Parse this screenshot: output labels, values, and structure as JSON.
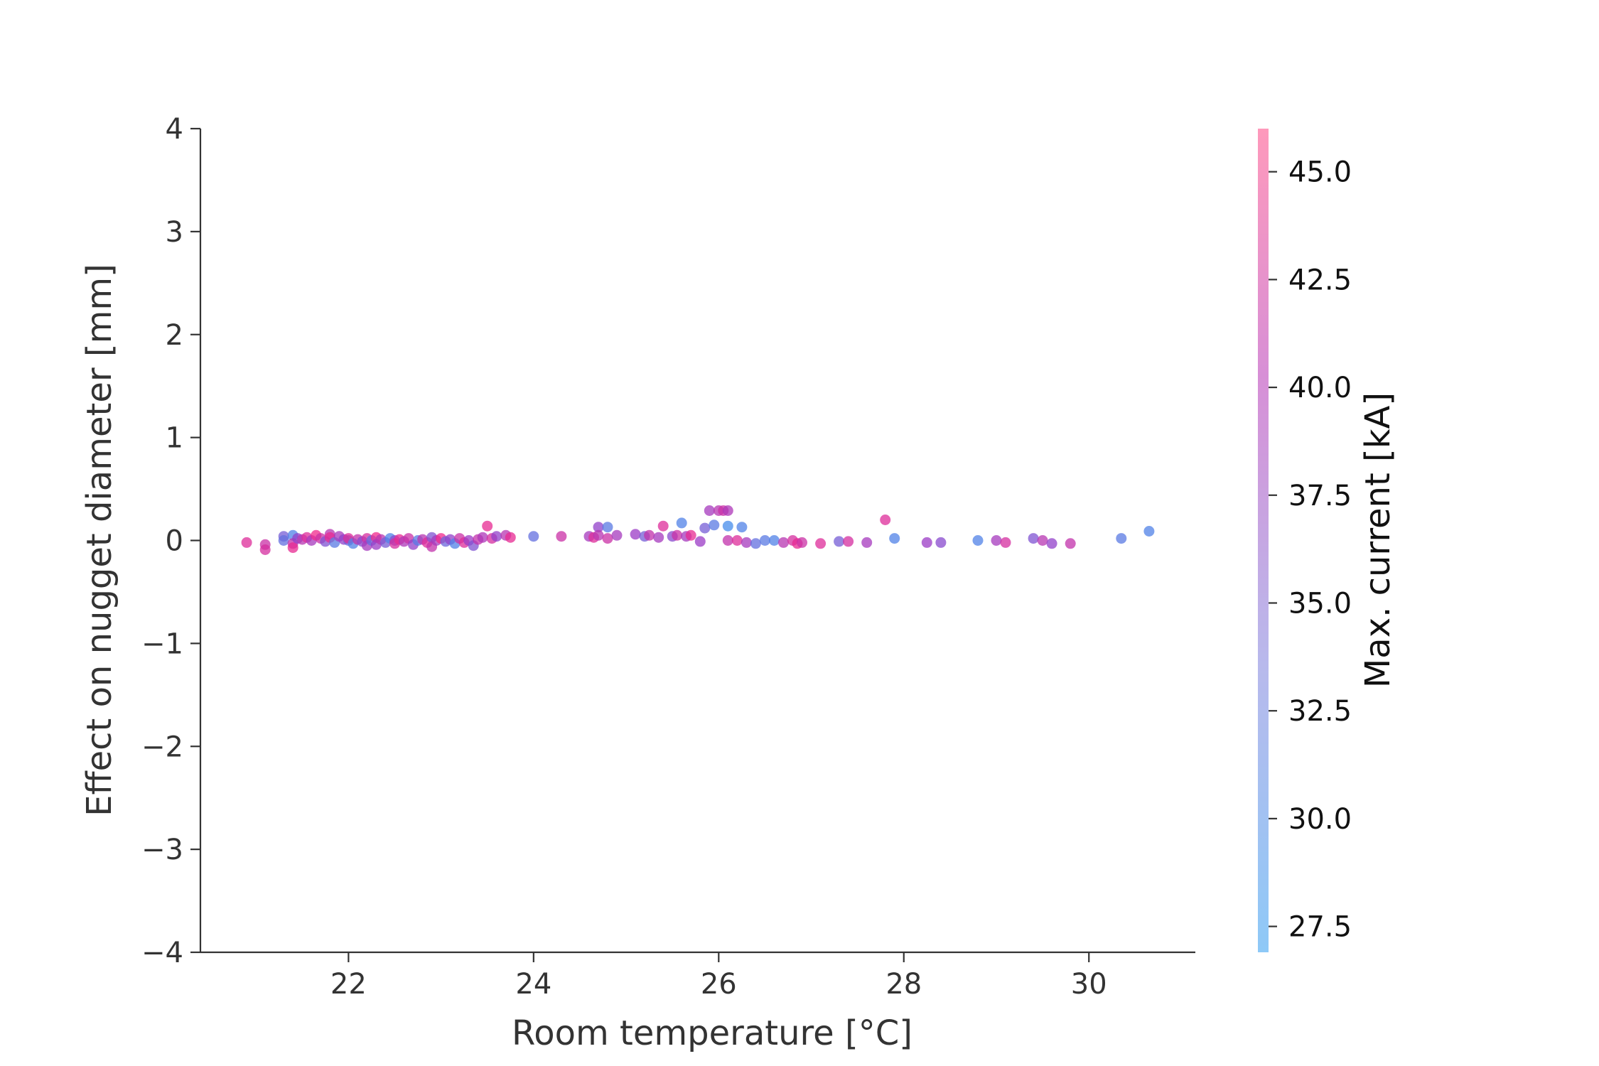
{
  "chart_data": {
    "type": "scatter",
    "xlabel": "Room temperature [°C]",
    "ylabel": "Effect on nugget diameter [mm]",
    "xlim": [
      20.4,
      31.15
    ],
    "ylim": [
      -4,
      4
    ],
    "xticks": [
      22,
      24,
      26,
      28,
      30
    ],
    "xtick_labels": [
      "22",
      "24",
      "26",
      "28",
      "30"
    ],
    "yticks": [
      -4,
      -3,
      -2,
      -1,
      0,
      1,
      2,
      3,
      4
    ],
    "ytick_labels": [
      "−4",
      "−3",
      "−2",
      "−1",
      "0",
      "1",
      "2",
      "3",
      "4"
    ],
    "grid": false,
    "colorbar": {
      "label": "Max. current [kA]",
      "range": [
        26.9,
        46.0
      ],
      "ticks": [
        27.5,
        30.0,
        32.5,
        35.0,
        37.5,
        40.0,
        42.5,
        45.0
      ],
      "tick_labels": [
        "27.5",
        "30.0",
        "32.5",
        "35.0",
        "37.5",
        "40.0",
        "42.5",
        "45.0"
      ],
      "colormap": [
        "#8ec9f7",
        "#b8b9ec",
        "#d78fd6",
        "#fe99bb"
      ]
    },
    "marker_opacity": 0.75,
    "points": [
      [
        20.9,
        -0.02,
        44
      ],
      [
        21.1,
        -0.04,
        42
      ],
      [
        21.1,
        -0.09,
        43
      ],
      [
        21.3,
        0.04,
        33
      ],
      [
        21.3,
        0.0,
        31
      ],
      [
        21.4,
        0.05,
        29
      ],
      [
        21.4,
        -0.03,
        41
      ],
      [
        21.4,
        -0.07,
        45
      ],
      [
        21.45,
        0.02,
        36
      ],
      [
        21.5,
        0.01,
        40
      ],
      [
        21.55,
        0.03,
        44
      ],
      [
        21.6,
        0.0,
        38
      ],
      [
        21.65,
        0.05,
        46
      ],
      [
        21.7,
        0.02,
        42
      ],
      [
        21.75,
        -0.01,
        34
      ],
      [
        21.8,
        0.06,
        40
      ],
      [
        21.8,
        0.03,
        45
      ],
      [
        21.85,
        -0.02,
        30
      ],
      [
        21.9,
        0.04,
        38
      ],
      [
        21.95,
        0.01,
        36
      ],
      [
        22.0,
        0.0,
        32
      ],
      [
        22.0,
        0.02,
        44
      ],
      [
        22.05,
        -0.03,
        29
      ],
      [
        22.1,
        0.01,
        41
      ],
      [
        22.15,
        -0.01,
        35
      ],
      [
        22.2,
        0.02,
        43
      ],
      [
        22.2,
        -0.05,
        38
      ],
      [
        22.25,
        0.0,
        31
      ],
      [
        22.3,
        0.03,
        46
      ],
      [
        22.3,
        -0.04,
        37
      ],
      [
        22.35,
        0.01,
        40
      ],
      [
        22.4,
        -0.02,
        33
      ],
      [
        22.45,
        0.02,
        29
      ],
      [
        22.5,
        0.0,
        35
      ],
      [
        22.5,
        -0.03,
        43
      ],
      [
        22.55,
        0.01,
        45
      ],
      [
        22.6,
        -0.01,
        39
      ],
      [
        22.65,
        0.02,
        42
      ],
      [
        22.7,
        -0.04,
        36
      ],
      [
        22.75,
        0.0,
        30
      ],
      [
        22.8,
        0.01,
        40
      ],
      [
        22.85,
        -0.02,
        44
      ],
      [
        22.9,
        0.03,
        34
      ],
      [
        22.9,
        -0.06,
        41
      ],
      [
        22.95,
        0.0,
        38
      ],
      [
        23.0,
        0.02,
        46
      ],
      [
        23.05,
        -0.01,
        32
      ],
      [
        23.1,
        0.01,
        36
      ],
      [
        23.15,
        -0.03,
        29
      ],
      [
        23.2,
        0.02,
        42
      ],
      [
        23.25,
        -0.02,
        44
      ],
      [
        23.3,
        0.0,
        37
      ],
      [
        23.35,
        -0.05,
        34
      ],
      [
        23.4,
        0.01,
        41
      ],
      [
        23.45,
        0.03,
        39
      ],
      [
        23.5,
        0.14,
        45
      ],
      [
        23.55,
        0.02,
        43
      ],
      [
        23.6,
        0.04,
        36
      ],
      [
        23.7,
        0.05,
        40
      ],
      [
        23.75,
        0.03,
        45
      ],
      [
        24.0,
        0.04,
        31
      ],
      [
        24.3,
        0.04,
        42
      ],
      [
        24.6,
        0.04,
        38
      ],
      [
        24.65,
        0.03,
        44
      ],
      [
        24.7,
        0.13,
        36
      ],
      [
        24.7,
        0.05,
        40
      ],
      [
        24.8,
        0.13,
        30
      ],
      [
        24.8,
        0.02,
        42
      ],
      [
        24.9,
        0.05,
        38
      ],
      [
        25.1,
        0.06,
        37
      ],
      [
        25.2,
        0.04,
        33
      ],
      [
        25.25,
        0.05,
        41
      ],
      [
        25.35,
        0.03,
        38
      ],
      [
        25.4,
        0.14,
        44
      ],
      [
        25.5,
        0.04,
        35
      ],
      [
        25.55,
        0.05,
        42
      ],
      [
        25.6,
        0.17,
        29
      ],
      [
        25.65,
        0.04,
        38
      ],
      [
        25.7,
        0.05,
        45
      ],
      [
        25.8,
        -0.01,
        37
      ],
      [
        25.85,
        0.12,
        33
      ],
      [
        25.9,
        0.29,
        38
      ],
      [
        25.95,
        0.15,
        30
      ],
      [
        26.0,
        0.29,
        40
      ],
      [
        26.05,
        0.29,
        42
      ],
      [
        26.1,
        0.14,
        28
      ],
      [
        26.1,
        0.29,
        39
      ],
      [
        26.1,
        0.0,
        41
      ],
      [
        26.2,
        0.0,
        44
      ],
      [
        26.25,
        0.13,
        29
      ],
      [
        26.3,
        -0.02,
        38
      ],
      [
        26.4,
        -0.03,
        31
      ],
      [
        26.5,
        0.0,
        30
      ],
      [
        26.6,
        0.0,
        29
      ],
      [
        26.7,
        -0.02,
        40
      ],
      [
        26.8,
        0.0,
        43
      ],
      [
        26.85,
        -0.03,
        45
      ],
      [
        26.9,
        -0.02,
        42
      ],
      [
        27.1,
        -0.03,
        44
      ],
      [
        27.3,
        -0.01,
        33
      ],
      [
        27.4,
        -0.01,
        43
      ],
      [
        27.6,
        -0.02,
        38
      ],
      [
        27.8,
        0.2,
        44
      ],
      [
        27.9,
        0.02,
        29
      ],
      [
        28.25,
        -0.02,
        37
      ],
      [
        28.4,
        -0.02,
        35
      ],
      [
        28.8,
        0.0,
        29
      ],
      [
        29.0,
        0.0,
        38
      ],
      [
        29.1,
        -0.02,
        43
      ],
      [
        29.4,
        0.02,
        34
      ],
      [
        29.5,
        0.0,
        40
      ],
      [
        29.6,
        -0.03,
        36
      ],
      [
        29.8,
        -0.03,
        41
      ],
      [
        30.35,
        0.02,
        30
      ],
      [
        30.65,
        0.09,
        29
      ]
    ]
  }
}
